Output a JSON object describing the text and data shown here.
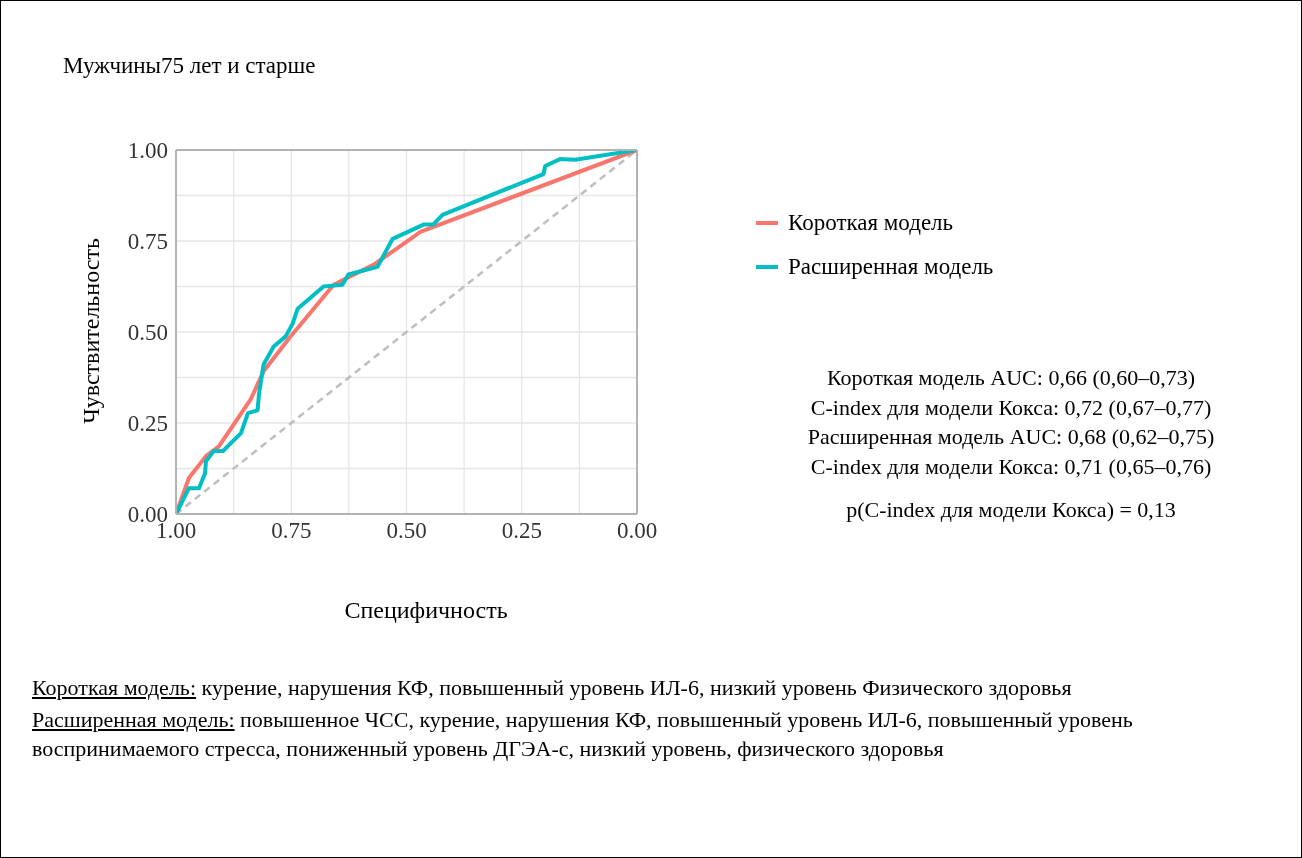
{
  "chart_data": {
    "type": "line",
    "title": "Мужчины75 лет и старше",
    "xlabel": "Специфичность",
    "ylabel": "Чувствительность",
    "xlim": [
      1,
      0
    ],
    "ylim": [
      0,
      1
    ],
    "xticks": [
      {
        "value": 1,
        "label": "1.00"
      },
      {
        "value": 0.75,
        "label": "0.75"
      },
      {
        "value": 0.5,
        "label": "0.50"
      },
      {
        "value": 0.25,
        "label": "0.25"
      },
      {
        "value": 0,
        "label": "0.00"
      }
    ],
    "yticks": [
      {
        "value": 0,
        "label": "0.00"
      },
      {
        "value": 0.25,
        "label": "0.25"
      },
      {
        "value": 0.5,
        "label": "0.50"
      },
      {
        "value": 0.75,
        "label": "0.75"
      },
      {
        "value": 1,
        "label": "1.00"
      }
    ],
    "grid": true,
    "legend": "right",
    "marker": "none",
    "series": [
      {
        "color": "#bebebe",
        "line_style": "dashed",
        "x": [
          1,
          0
        ],
        "values": [
          0,
          1
        ]
      },
      {
        "name": "Короткая модель",
        "color": "#f8766d",
        "line_style": "solid",
        "x": [
          1,
          0.972,
          0.935,
          0.907,
          0.838,
          0.81,
          0.755,
          0.658,
          0.571,
          0.491,
          0.47,
          0
        ],
        "values": [
          0,
          0.099,
          0.159,
          0.186,
          0.315,
          0.392,
          0.482,
          0.63,
          0.685,
          0.756,
          0.775,
          1
        ]
      },
      {
        "name": "Расширенная модель",
        "color": "#00bfc4",
        "line_style": "solid",
        "x": [
          1,
          0.972,
          0.95,
          0.937,
          0.935,
          0.918,
          0.898,
          0.859,
          0.844,
          0.823,
          0.82,
          0.81,
          0.788,
          0.762,
          0.747,
          0.736,
          0.68,
          0.639,
          0.626,
          0.563,
          0.53,
          0.463,
          0.442,
          0.422,
          0.203,
          0.199,
          0.167,
          0.134,
          0
        ],
        "values": [
          0,
          0.071,
          0.071,
          0.112,
          0.145,
          0.173,
          0.173,
          0.222,
          0.277,
          0.285,
          0.329,
          0.411,
          0.46,
          0.488,
          0.523,
          0.564,
          0.625,
          0.63,
          0.658,
          0.679,
          0.756,
          0.795,
          0.795,
          0.822,
          0.934,
          0.956,
          0.975,
          0.973,
          1
        ]
      }
    ],
    "annotations": [
      "Короткая модель AUC: 0,66 (0,60–0,73)",
      "C-index для модели Кокса: 0,72 (0,67–0,77)",
      "Расширенная модель AUC: 0,68 (0,62–0,75)",
      "C-index для модели Кокса: 0,71 (0,65–0,76)",
      "p(C-index для модели Кокса) = 0,13",
      "Короткая модель: курение, нарушения КФ, повышенный уровень ИЛ-6, низкий уровень Физического здоровья",
      "Расширенная модель: повышенное ЧСС, курение, нарушения КФ, повышенный уровень ИЛ-6, повышенный уровень воспринимаемого стресса, пониженный уровень ДГЭА-с, низкий уровень, физического здоровья"
    ]
  }
}
